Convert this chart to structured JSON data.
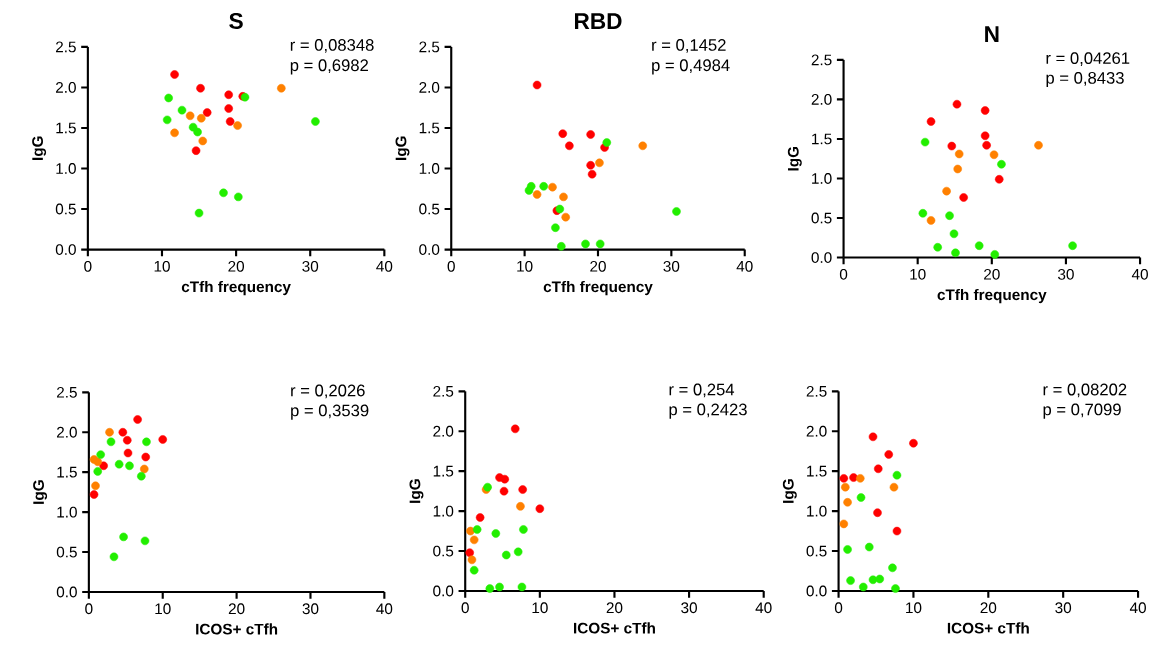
{
  "chart_data": [
    {
      "type": "scatter",
      "title": "S",
      "xlabel": "cTfh frequency",
      "ylabel": "IgG",
      "annotations": [
        "r = 0,08348",
        "p = 0,6982"
      ],
      "xlim": [
        0,
        40
      ],
      "ylim": [
        0,
        2.5
      ],
      "xticks": [
        0,
        10,
        20,
        30,
        40
      ],
      "yticks": [
        {
          "value": 0,
          "label": "0.0"
        },
        {
          "value": 0.5,
          "label": "0.5"
        },
        {
          "value": 1,
          "label": "1.0"
        },
        {
          "value": 1.5,
          "label": "1.5"
        },
        {
          "value": 2,
          "label": "2.0"
        },
        {
          "value": 2.5,
          "label": "2.5"
        }
      ],
      "marker": "circle",
      "series": [
        {
          "color": "#ff0000",
          "x": [
            11.7,
            15.2,
            19.0,
            20.9,
            16.1,
            19.0,
            19.2,
            14.6
          ],
          "values": [
            2.16,
            1.99,
            1.91,
            1.89,
            1.69,
            1.74,
            1.58,
            1.22
          ]
        },
        {
          "color": "#ff8000",
          "x": [
            26.1,
            13.8,
            15.3,
            20.2,
            11.7,
            15.5
          ],
          "values": [
            1.99,
            1.65,
            1.62,
            1.53,
            1.44,
            1.34
          ]
        },
        {
          "color": "#22ee00",
          "x": [
            10.9,
            21.2,
            12.7,
            10.7,
            14.2,
            14.8,
            30.7,
            18.3,
            20.3,
            15.0
          ],
          "values": [
            1.87,
            1.88,
            1.72,
            1.6,
            1.51,
            1.45,
            1.58,
            0.7,
            0.65,
            0.45
          ]
        }
      ]
    },
    {
      "type": "scatter",
      "title": "RBD",
      "xlabel": "cTfh frequency",
      "ylabel": "IgG",
      "annotations": [
        "r = 0,1452",
        "p = 0,4984"
      ],
      "xlim": [
        0,
        40
      ],
      "ylim": [
        0,
        2.5
      ],
      "xticks": [
        0,
        10,
        20,
        30,
        40
      ],
      "yticks": [
        {
          "value": 0,
          "label": "0.0"
        },
        {
          "value": 0.5,
          "label": "0.5"
        },
        {
          "value": 1,
          "label": "1.0"
        },
        {
          "value": 1.5,
          "label": "1.5"
        },
        {
          "value": 2,
          "label": "2.0"
        },
        {
          "value": 2.5,
          "label": "2.5"
        }
      ],
      "marker": "circle",
      "series": [
        {
          "color": "#ff0000",
          "x": [
            11.7,
            15.2,
            19.0,
            16.1,
            20.9,
            19.0,
            19.2,
            14.4
          ],
          "values": [
            2.03,
            1.43,
            1.42,
            1.28,
            1.26,
            1.04,
            0.93,
            0.48
          ]
        },
        {
          "color": "#ff8000",
          "x": [
            26.1,
            20.2,
            13.8,
            11.7,
            15.3,
            15.6
          ],
          "values": [
            1.28,
            1.07,
            0.77,
            0.68,
            0.65,
            0.4
          ]
        },
        {
          "color": "#22ee00",
          "x": [
            21.2,
            10.9,
            12.6,
            10.6,
            14.8,
            14.2,
            30.7,
            15.0,
            18.3,
            20.3
          ],
          "values": [
            1.32,
            0.78,
            0.78,
            0.73,
            0.5,
            0.27,
            0.47,
            0.04,
            0.07,
            0.07
          ]
        }
      ]
    },
    {
      "type": "scatter",
      "title": "N",
      "xlabel": "cTfh frequency",
      "ylabel": "IgG",
      "annotations": [
        "r = 0,04261",
        "p = 0,8433"
      ],
      "xlim": [
        0,
        40
      ],
      "ylim": [
        0,
        2.5
      ],
      "xticks": [
        0,
        10,
        20,
        30,
        40
      ],
      "yticks": [
        {
          "value": 0,
          "label": "0.0"
        },
        {
          "value": 0.5,
          "label": "0.5"
        },
        {
          "value": 1,
          "label": "1.0"
        },
        {
          "value": 1.5,
          "label": "1.5"
        },
        {
          "value": 2,
          "label": "2.0"
        },
        {
          "value": 2.5,
          "label": "2.5"
        }
      ],
      "marker": "circle",
      "series": [
        {
          "color": "#ff0000",
          "x": [
            15.3,
            19.1,
            11.8,
            19.1,
            19.3,
            14.6,
            21.0,
            16.2
          ],
          "values": [
            1.94,
            1.86,
            1.72,
            1.54,
            1.42,
            1.41,
            0.99,
            0.76
          ]
        },
        {
          "color": "#ff8000",
          "x": [
            26.3,
            15.6,
            20.3,
            15.4,
            13.9,
            11.8
          ],
          "values": [
            1.42,
            1.31,
            1.3,
            1.12,
            0.84,
            0.47
          ]
        },
        {
          "color": "#22ee00",
          "x": [
            11.0,
            21.3,
            10.7,
            14.3,
            14.9,
            12.7,
            15.1,
            18.3,
            20.4,
            30.9
          ],
          "values": [
            1.46,
            1.18,
            0.56,
            0.53,
            0.3,
            0.13,
            0.06,
            0.15,
            0.04,
            0.15
          ]
        }
      ]
    },
    {
      "type": "scatter",
      "xlabel": "ICOS+ cTfh",
      "ylabel": "IgG",
      "annotations": [
        "r = 0,2026",
        "p = 0,3539"
      ],
      "xlim": [
        0,
        40
      ],
      "ylim": [
        0,
        2.5
      ],
      "xticks": [
        0,
        10,
        20,
        30,
        40
      ],
      "yticks": [
        {
          "value": 0,
          "label": "0.0"
        },
        {
          "value": 0.5,
          "label": "0.5"
        },
        {
          "value": 1,
          "label": "1.0"
        },
        {
          "value": 1.5,
          "label": "1.5"
        },
        {
          "value": 2,
          "label": "2.0"
        },
        {
          "value": 2.5,
          "label": "2.5"
        }
      ],
      "marker": "circle",
      "series": [
        {
          "color": "#ff0000",
          "x": [
            6.6,
            4.6,
            5.2,
            10.0,
            5.3,
            7.7,
            2.0,
            0.7
          ],
          "values": [
            2.16,
            2.0,
            1.9,
            1.91,
            1.74,
            1.69,
            1.58,
            1.22
          ]
        },
        {
          "color": "#ff8000",
          "x": [
            2.8,
            0.7,
            1.2,
            7.5,
            0.9
          ],
          "values": [
            2.0,
            1.66,
            1.63,
            1.54,
            1.33
          ]
        },
        {
          "color": "#22ee00",
          "x": [
            3.0,
            7.8,
            1.6,
            4.1,
            5.5,
            1.2,
            7.1,
            4.7,
            7.6,
            3.4
          ],
          "values": [
            1.88,
            1.88,
            1.72,
            1.6,
            1.58,
            1.51,
            1.45,
            0.69,
            0.64,
            0.44
          ]
        }
      ]
    },
    {
      "type": "scatter",
      "xlabel": "ICOS+ cTfh",
      "ylabel": "IgG",
      "annotations": [
        "r = 0,254",
        "p = 0,2423"
      ],
      "xlim": [
        0,
        40
      ],
      "ylim": [
        0,
        2.5
      ],
      "xticks": [
        0,
        10,
        20,
        30,
        40
      ],
      "yticks": [
        {
          "value": 0,
          "label": "0.0"
        },
        {
          "value": 0.5,
          "label": "0.5"
        },
        {
          "value": 1,
          "label": "1.0"
        },
        {
          "value": 1.5,
          "label": "1.5"
        },
        {
          "value": 2,
          "label": "2.0"
        },
        {
          "value": 2.5,
          "label": "2.5"
        }
      ],
      "marker": "circle",
      "series": [
        {
          "color": "#ff0000",
          "x": [
            6.7,
            4.6,
            5.3,
            5.2,
            7.7,
            10.0,
            2.0,
            0.6
          ],
          "values": [
            2.03,
            1.42,
            1.4,
            1.25,
            1.27,
            1.03,
            0.92,
            0.48
          ]
        },
        {
          "color": "#ff8000",
          "x": [
            2.8,
            7.4,
            0.7,
            1.2,
            0.9
          ],
          "values": [
            1.27,
            1.06,
            0.75,
            0.64,
            0.39
          ]
        },
        {
          "color": "#22ee00",
          "x": [
            3.0,
            7.8,
            1.6,
            4.1,
            5.5,
            7.1,
            1.2,
            3.3,
            4.6,
            7.6
          ],
          "values": [
            1.3,
            0.77,
            0.77,
            0.72,
            0.45,
            0.49,
            0.26,
            0.03,
            0.05,
            0.05
          ]
        }
      ]
    },
    {
      "type": "scatter",
      "xlabel": "ICOS+ cTfh",
      "ylabel": "IgG",
      "annotations": [
        "r = 0,08202",
        "p = 0,7099"
      ],
      "xlim": [
        0,
        40
      ],
      "ylim": [
        0,
        2.5
      ],
      "xticks": [
        0,
        10,
        20,
        30,
        40
      ],
      "yticks": [
        {
          "value": 0,
          "label": "0.0"
        },
        {
          "value": 0.5,
          "label": "0.5"
        },
        {
          "value": 1,
          "label": "1.0"
        },
        {
          "value": 1.5,
          "label": "1.5"
        },
        {
          "value": 2,
          "label": "2.0"
        },
        {
          "value": 2.5,
          "label": "2.5"
        }
      ],
      "marker": "circle",
      "series": [
        {
          "color": "#ff0000",
          "x": [
            4.6,
            10.0,
            6.7,
            5.3,
            0.7,
            2.0,
            5.2,
            7.8
          ],
          "values": [
            1.93,
            1.85,
            1.71,
            1.53,
            1.41,
            1.42,
            0.98,
            0.75
          ]
        },
        {
          "color": "#ff8000",
          "x": [
            2.9,
            0.9,
            7.4,
            1.2,
            0.7
          ],
          "values": [
            1.41,
            1.3,
            1.3,
            1.11,
            0.84
          ]
        },
        {
          "color": "#22ee00",
          "x": [
            7.8,
            3.0,
            1.2,
            4.1,
            7.2,
            1.6,
            3.3,
            4.6,
            5.5,
            7.6
          ],
          "values": [
            1.45,
            1.17,
            0.52,
            0.55,
            0.29,
            0.13,
            0.05,
            0.14,
            0.15,
            0.03
          ]
        }
      ]
    }
  ]
}
